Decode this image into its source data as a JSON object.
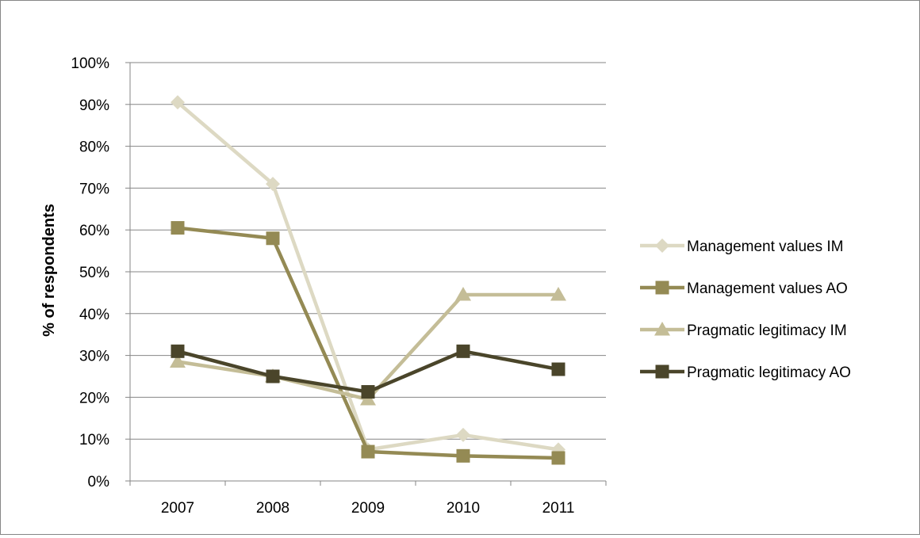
{
  "chart_data": {
    "type": "line",
    "title": "",
    "xlabel": "",
    "ylabel": "% of respondents",
    "ylim": [
      0,
      100
    ],
    "y_ticks": [
      "0%",
      "10%",
      "20%",
      "30%",
      "40%",
      "50%",
      "60%",
      "70%",
      "80%",
      "90%",
      "100%"
    ],
    "categories": [
      "2007",
      "2008",
      "2009",
      "2010",
      "2011"
    ],
    "grid": "horizontal",
    "legend_position": "right",
    "series": [
      {
        "name": "Management values IM",
        "marker": "diamond",
        "color": "#ddd9c3",
        "values": [
          90.5,
          71,
          7.5,
          11,
          7.5
        ]
      },
      {
        "name": "Management values AO",
        "marker": "square",
        "color": "#948a54",
        "values": [
          60.5,
          58,
          7,
          6,
          5.5
        ]
      },
      {
        "name": "Pragmatic legitimacy IM",
        "marker": "triangle",
        "color": "#c4bd97",
        "values": [
          28.5,
          25,
          19.5,
          44.5,
          44.5
        ]
      },
      {
        "name": "Pragmatic legitimacy AO",
        "marker": "square",
        "color": "#4a452a",
        "values": [
          31,
          25,
          21.3,
          31,
          26.7
        ]
      }
    ]
  },
  "colors": {
    "gridline": "#868686",
    "axis": "#868686",
    "frame": "#868686"
  }
}
